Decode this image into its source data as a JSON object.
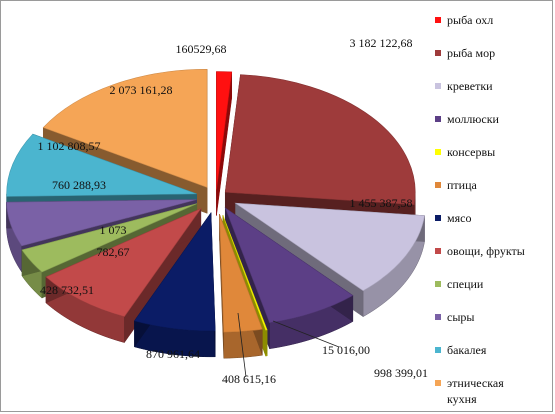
{
  "chart_data": {
    "type": "pie",
    "style": "3d-exploded",
    "legend_position": "right",
    "slices": [
      {
        "name": "рыба охл",
        "value": 160529.68,
        "label": "160529,68",
        "color": "#ff1010"
      },
      {
        "name": "рыба мор",
        "value": 3182122.68,
        "label": "3 182 122,68",
        "color": "#9e3b3b"
      },
      {
        "name": "креветки",
        "value": 1455387.58,
        "label": "1 455 387,58",
        "color": "#c9c3df"
      },
      {
        "name": "моллюски",
        "value": 998399.01,
        "label": "998 399,01",
        "color": "#5c3f86"
      },
      {
        "name": "консервы",
        "value": 15016.0,
        "label": "15 016,00",
        "color": "#ffff00"
      },
      {
        "name": "птица",
        "value": 408615.16,
        "label": "408 615,16",
        "color": "#e0883a"
      },
      {
        "name": "мясо",
        "value": 870961.64,
        "label": "870 961,64",
        "color": "#0b1c66"
      },
      {
        "name": "овощи, фрукты",
        "value": 1073782.67,
        "label": "1 073\n782,67",
        "color": "#c24a4a"
      },
      {
        "name": "специи",
        "value": 428732.51,
        "label": "428 732,51",
        "color": "#9dbb5e"
      },
      {
        "name": "сыры",
        "value": 760288.93,
        "label": "760 288,93",
        "color": "#7a61a6"
      },
      {
        "name": "бакалея",
        "value": 1102808.57,
        "label": "1 102 808,57",
        "color": "#4bb5cf"
      },
      {
        "name": "этническая кухня",
        "value": 2073161.28,
        "label": "2 073 161,28",
        "color": "#f5a556"
      }
    ]
  }
}
